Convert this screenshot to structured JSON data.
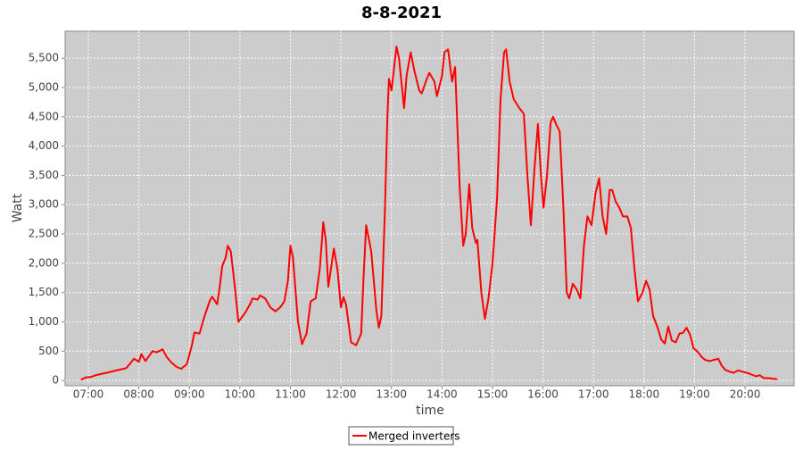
{
  "chart_data": {
    "type": "line",
    "title": "8-8-2021",
    "xlabel": "time",
    "ylabel": "Watt",
    "xlim": [
      6.54,
      20.97
    ],
    "ylim": [
      -90,
      5960
    ],
    "grid": true,
    "legend": "bottom",
    "xticks": [
      {
        "value": 7,
        "label": "07:00"
      },
      {
        "value": 8,
        "label": "08:00"
      },
      {
        "value": 9,
        "label": "09:00"
      },
      {
        "value": 10,
        "label": "10:00"
      },
      {
        "value": 11,
        "label": "11:00"
      },
      {
        "value": 12,
        "label": "12:00"
      },
      {
        "value": 13,
        "label": "13:00"
      },
      {
        "value": 14,
        "label": "14:00"
      },
      {
        "value": 15,
        "label": "15:00"
      },
      {
        "value": 16,
        "label": "16:00"
      },
      {
        "value": 17,
        "label": "17:00"
      },
      {
        "value": 18,
        "label": "18:00"
      },
      {
        "value": 19,
        "label": "19:00"
      },
      {
        "value": 20,
        "label": "20:00"
      }
    ],
    "yticks": [
      0,
      500,
      {
        "value": 1000,
        "label": "1,000"
      },
      {
        "value": 1500,
        "label": "1,500"
      },
      {
        "value": 2000,
        "label": "2,000"
      },
      {
        "value": 2500,
        "label": "2,500"
      },
      {
        "value": 3000,
        "label": "3,000"
      },
      {
        "value": 3500,
        "label": "3,500"
      },
      {
        "value": 4000,
        "label": "4,000"
      },
      {
        "value": 4500,
        "label": "4,500"
      },
      {
        "value": 5000,
        "label": "5,000"
      },
      {
        "value": 5500,
        "label": "5,500"
      }
    ],
    "x": [
      6.85,
      6.95,
      7.05,
      7.15,
      7.25,
      7.35,
      7.45,
      7.55,
      7.65,
      7.75,
      7.82,
      7.9,
      8.0,
      8.05,
      8.13,
      8.27,
      8.35,
      8.47,
      8.55,
      8.65,
      8.75,
      8.84,
      8.95,
      9.05,
      9.1,
      9.2,
      9.3,
      9.4,
      9.45,
      9.55,
      9.6,
      9.65,
      9.72,
      9.76,
      9.82,
      9.9,
      9.97,
      10.1,
      10.2,
      10.25,
      10.35,
      10.4,
      10.5,
      10.6,
      10.7,
      10.8,
      10.88,
      10.95,
      11.0,
      11.05,
      11.15,
      11.23,
      11.32,
      11.4,
      11.5,
      11.58,
      11.65,
      11.7,
      11.75,
      11.86,
      11.93,
      12.0,
      12.05,
      12.1,
      12.2,
      12.3,
      12.4,
      12.45,
      12.5,
      12.6,
      12.7,
      12.75,
      12.8,
      12.87,
      12.92,
      12.95,
      13.0,
      13.1,
      13.15,
      13.25,
      13.3,
      13.38,
      13.45,
      13.55,
      13.6,
      13.7,
      13.75,
      13.85,
      13.9,
      14.0,
      14.05,
      14.12,
      14.2,
      14.26,
      14.35,
      14.42,
      14.47,
      14.54,
      14.6,
      14.67,
      14.7,
      14.78,
      14.85,
      14.92,
      15.0,
      15.09,
      15.16,
      15.23,
      15.27,
      15.34,
      15.42,
      15.53,
      15.62,
      15.69,
      15.76,
      15.83,
      15.9,
      15.96,
      16.01,
      16.08,
      16.15,
      16.2,
      16.27,
      16.33,
      16.4,
      16.47,
      16.52,
      16.59,
      16.67,
      16.74,
      16.81,
      16.88,
      16.96,
      17.04,
      17.11,
      17.18,
      17.25,
      17.32,
      17.37,
      17.44,
      17.51,
      17.58,
      17.67,
      17.74,
      17.81,
      17.88,
      17.97,
      18.04,
      18.11,
      18.18,
      18.27,
      18.34,
      18.41,
      18.48,
      18.55,
      18.63,
      18.7,
      18.77,
      18.84,
      18.91,
      18.98,
      19.05,
      19.14,
      19.21,
      19.3,
      19.38,
      19.47,
      19.54,
      19.61,
      19.7,
      19.77,
      19.86,
      19.95,
      20.04,
      20.13,
      20.22,
      20.29,
      20.37,
      20.46,
      20.55,
      20.64
    ],
    "series": [
      {
        "name": "Merged inverters",
        "color": "#ff0000",
        "values": [
          10,
          50,
          60,
          90,
          110,
          130,
          150,
          170,
          190,
          210,
          280,
          370,
          320,
          450,
          330,
          500,
          480,
          530,
          400,
          300,
          230,
          200,
          280,
          600,
          820,
          800,
          1100,
          1350,
          1430,
          1300,
          1600,
          1950,
          2100,
          2300,
          2200,
          1600,
          1000,
          1150,
          1300,
          1400,
          1380,
          1450,
          1400,
          1250,
          1180,
          1250,
          1350,
          1700,
          2300,
          2100,
          1000,
          620,
          800,
          1350,
          1400,
          1900,
          2700,
          2400,
          1600,
          2250,
          1900,
          1250,
          1420,
          1300,
          650,
          600,
          800,
          1800,
          2650,
          2200,
          1200,
          900,
          1100,
          2900,
          4500,
          5150,
          4950,
          5700,
          5500,
          4650,
          5200,
          5600,
          5300,
          4950,
          4900,
          5150,
          5250,
          5100,
          4850,
          5200,
          5600,
          5650,
          5100,
          5350,
          3300,
          2300,
          2500,
          3350,
          2600,
          2350,
          2400,
          1500,
          1050,
          1400,
          2000,
          3100,
          4800,
          5600,
          5650,
          5100,
          4800,
          4650,
          4550,
          3500,
          2650,
          3600,
          4380,
          3500,
          2950,
          3500,
          4400,
          4500,
          4350,
          4250,
          3000,
          1500,
          1400,
          1650,
          1550,
          1400,
          2300,
          2800,
          2650,
          3200,
          3450,
          2800,
          2500,
          3250,
          3250,
          3050,
          2950,
          2800,
          2800,
          2600,
          1900,
          1350,
          1500,
          1700,
          1550,
          1100,
          900,
          700,
          630,
          920,
          680,
          650,
          800,
          810,
          900,
          780,
          550,
          500,
          400,
          350,
          330,
          350,
          370,
          250,
          180,
          150,
          130,
          170,
          150,
          130,
          100,
          70,
          90,
          40,
          40,
          30,
          20
        ]
      }
    ]
  }
}
